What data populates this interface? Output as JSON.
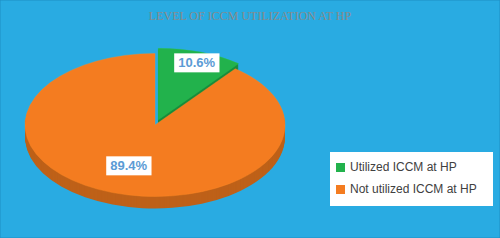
{
  "chart_data": {
    "type": "pie",
    "title": "LEVEL OF ICCM UTILIZATION AT HP",
    "categories": [
      "Utilized ICCM at HP",
      "Not utilized ICCM at HP"
    ],
    "values": [
      10.6,
      89.4
    ],
    "value_labels": [
      "10.6%",
      "89.4%"
    ],
    "colors": [
      "#22b24c",
      "#f47c20"
    ],
    "data_labels": true,
    "legend": "right"
  }
}
